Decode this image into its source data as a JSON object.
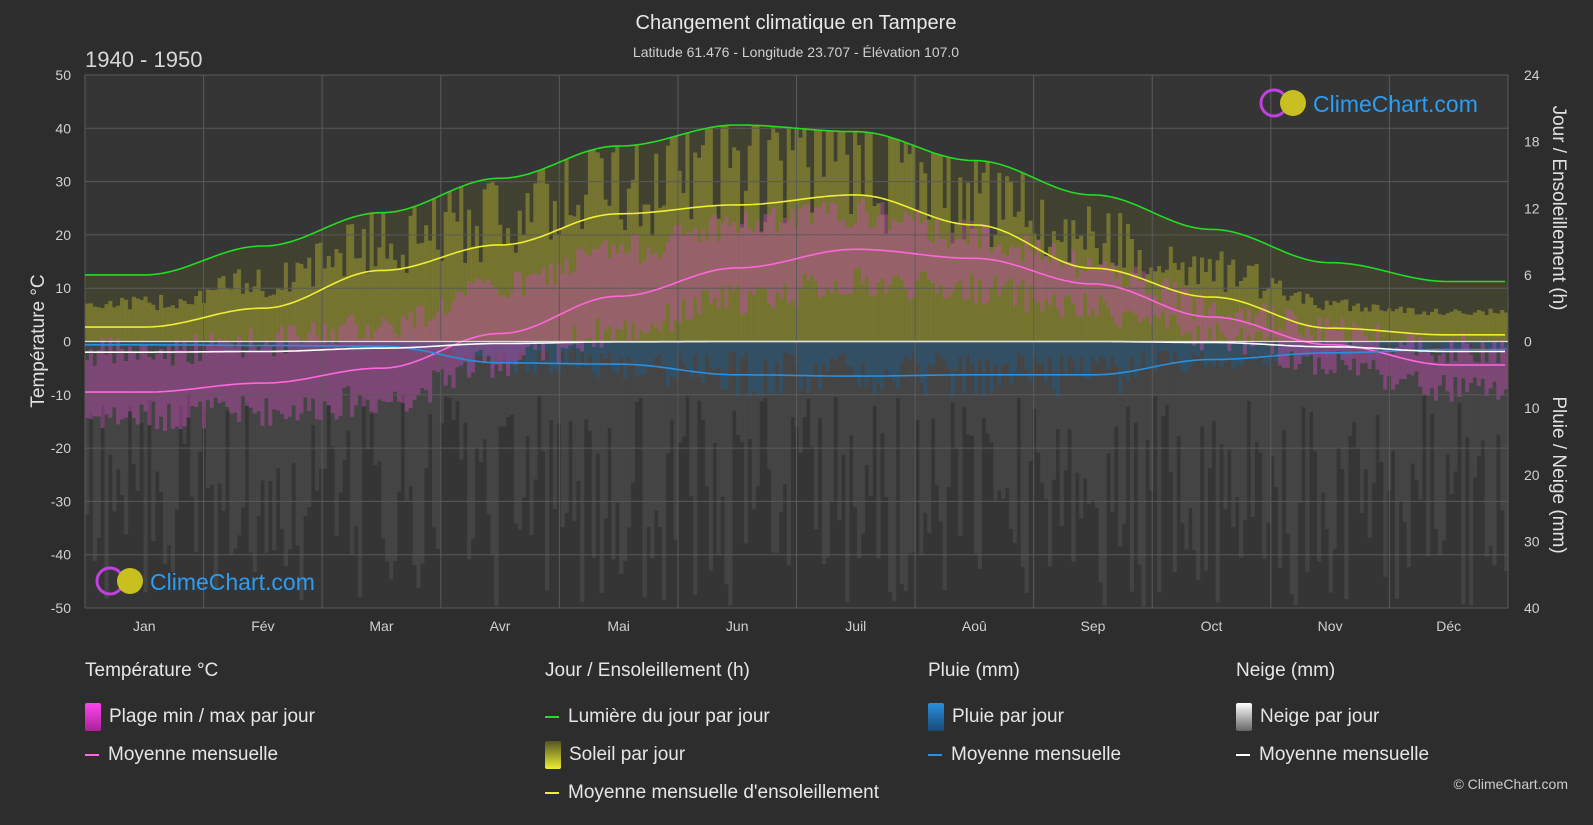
{
  "header": {
    "title": "Changement climatique en Tampere",
    "subtitle": "Latitude 61.476 - Longitude 23.707 - Élévation 107.0",
    "period": "1940 - 1950",
    "brand": "ClimeChart.com",
    "copyright": "© ClimeChart.com"
  },
  "colors": {
    "background": "#2d2d2d",
    "daylight": "#22dd22",
    "sunshine_avg": "#eeee33",
    "sunshine_fill": "#b4b42d",
    "temp_avg": "#ff66dd",
    "temp_fill": "#cc33aa",
    "rain": "#2a8fdf",
    "snow_line": "#ffffff",
    "brand_text": "#2a9df4"
  },
  "chart_data": {
    "type": "line",
    "months": [
      "Jan",
      "Fév",
      "Mar",
      "Avr",
      "Mai",
      "Jun",
      "Juil",
      "Aoû",
      "Sep",
      "Oct",
      "Nov",
      "Déc"
    ],
    "left_axis": {
      "label": "Température °C",
      "range": [
        -50,
        50
      ],
      "ticks": [
        "50",
        "40",
        "30",
        "20",
        "10",
        "0",
        "-10",
        "-20",
        "-30",
        "-40",
        "-50"
      ]
    },
    "right_axis_top": {
      "label": "Jour / Ensoleillement (h)",
      "range": [
        0,
        24
      ],
      "ticks": [
        "24",
        "18",
        "12",
        "6",
        "0"
      ]
    },
    "right_axis_bottom": {
      "label": "Pluie / Neige (mm)",
      "range": [
        0,
        40
      ],
      "ticks": [
        "10",
        "20",
        "30",
        "40"
      ]
    },
    "series": [
      {
        "name": "Lumière du jour par jour",
        "unit": "h",
        "values": [
          6.0,
          8.6,
          11.6,
          14.7,
          17.6,
          19.5,
          18.9,
          16.3,
          13.2,
          10.1,
          7.1,
          5.4
        ]
      },
      {
        "name": "Moyenne mensuelle d'ensoleillement",
        "unit": "h",
        "values": [
          1.3,
          3.0,
          6.4,
          8.7,
          11.5,
          12.3,
          13.2,
          10.5,
          6.6,
          4.0,
          1.2,
          0.6
        ]
      },
      {
        "name": "Moyenne mensuelle",
        "group": "Température °C",
        "unit": "°C",
        "values": [
          -9.5,
          -7.8,
          -5.0,
          1.5,
          8.5,
          13.8,
          17.3,
          15.6,
          10.8,
          4.6,
          -0.6,
          -4.4
        ]
      },
      {
        "name": "Moyenne mensuelle",
        "group": "Pluie (mm)",
        "unit": "mm",
        "values": [
          0.5,
          0.6,
          0.7,
          3.2,
          3.4,
          5.0,
          5.2,
          5.0,
          5.0,
          2.7,
          1.7,
          1.2
        ]
      },
      {
        "name": "Moyenne mensuelle",
        "group": "Neige (mm)",
        "unit": "mm",
        "values": [
          1.6,
          1.5,
          1.0,
          0.3,
          0.05,
          0,
          0,
          0,
          0,
          0.15,
          0.8,
          1.5
        ]
      }
    ],
    "daily_ranges": {
      "temp_max": [
        -2,
        0,
        3,
        10,
        17,
        22,
        24,
        20,
        14,
        7,
        2,
        -1
      ],
      "temp_min": [
        -14,
        -13,
        -11,
        -4,
        2,
        8,
        11,
        10,
        6,
        1,
        -4,
        -9
      ]
    },
    "grid": true
  },
  "legend": {
    "temperature": {
      "title": "Température °C",
      "items": [
        "Plage min / max par jour",
        "Moyenne mensuelle"
      ]
    },
    "sun": {
      "title": "Jour / Ensoleillement (h)",
      "items": [
        "Lumière du jour par jour",
        "Soleil par jour",
        "Moyenne mensuelle d'ensoleillement"
      ]
    },
    "rain": {
      "title": "Pluie (mm)",
      "items": [
        "Pluie par jour",
        "Moyenne mensuelle"
      ]
    },
    "snow": {
      "title": "Neige (mm)",
      "items": [
        "Neige par jour",
        "Moyenne mensuelle"
      ]
    }
  }
}
